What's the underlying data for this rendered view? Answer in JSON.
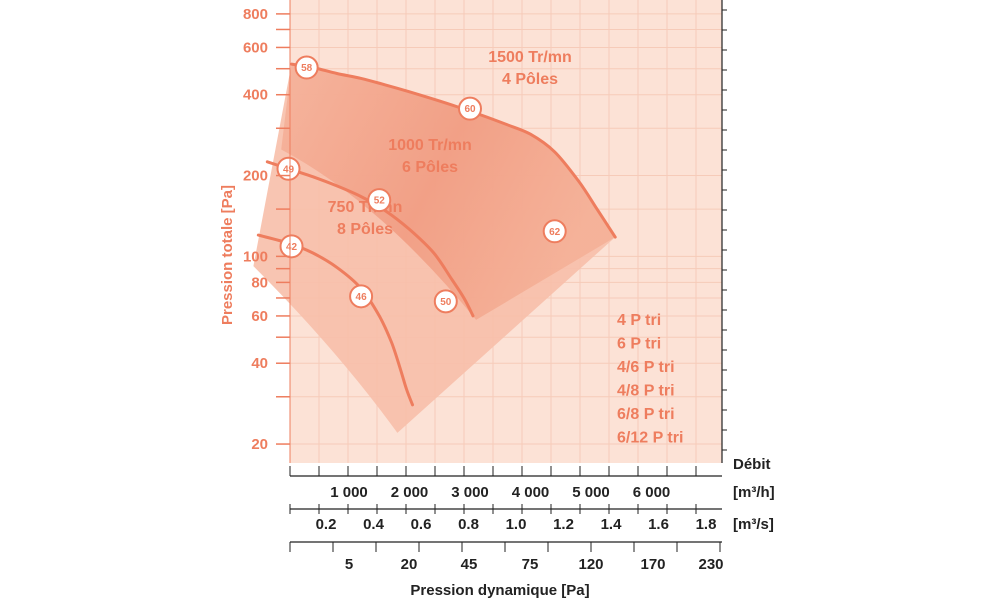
{
  "chart_data": {
    "type": "line",
    "x_axes": [
      {
        "name": "flow_m3h",
        "label": "Débit",
        "unit": "[m³/h]",
        "ticks": [
          "1 000",
          "2 000",
          "3 000",
          "4 000",
          "5 000",
          "6 000"
        ],
        "tick_values": [
          1000,
          2000,
          3000,
          4000,
          5000,
          6000
        ],
        "range": [
          0,
          6500
        ]
      },
      {
        "name": "flow_m3s",
        "unit": "[m³/s]",
        "ticks": [
          "0.2",
          "0.4",
          "0.6",
          "0.8",
          "1.0",
          "1.2",
          "1.4",
          "1.6",
          "1.8"
        ]
      },
      {
        "name": "dynamic_pressure",
        "label": "Pression dynamique [Pa]",
        "ticks": [
          "5",
          "20",
          "45",
          "75",
          "120",
          "170",
          "230"
        ]
      }
    ],
    "y_axis": {
      "label": "Pression totale [Pa]",
      "scale": "log",
      "range": [
        17,
        900
      ],
      "ticks": [
        "20",
        "40",
        "60",
        "80",
        "100",
        "200",
        "400",
        "600",
        "800"
      ],
      "tick_values": [
        20,
        40,
        60,
        80,
        100,
        200,
        400,
        600,
        800
      ]
    },
    "series": [
      {
        "name": "1500 Tr/mn 4 Pôles",
        "label_lines": [
          "1500 Tr/mn",
          "4 Pôles"
        ],
        "curve": [
          [
            50,
            520
          ],
          [
            400,
            505
          ],
          [
            800,
            480
          ],
          [
            1200,
            460
          ],
          [
            1600,
            435
          ],
          [
            2000,
            410
          ],
          [
            2400,
            385
          ],
          [
            2800,
            360
          ],
          [
            3200,
            335
          ],
          [
            3600,
            310
          ],
          [
            4000,
            285
          ],
          [
            4400,
            245
          ],
          [
            4800,
            190
          ],
          [
            5100,
            150
          ],
          [
            5400,
            118
          ]
        ],
        "markers": [
          {
            "x": 300,
            "y": 505,
            "label": "58"
          },
          {
            "x": 3000,
            "y": 355,
            "label": "60"
          },
          {
            "x": 4400,
            "y": 124,
            "label": "62"
          }
        ]
      },
      {
        "name": "1000 Tr/mn 6 Pôles",
        "label_lines": [
          "1000 Tr/mn",
          "6 Pôles"
        ],
        "curve": [
          [
            -350,
            225
          ],
          [
            0,
            212
          ],
          [
            400,
            198
          ],
          [
            800,
            183
          ],
          [
            1200,
            167
          ],
          [
            1600,
            148
          ],
          [
            2000,
            126
          ],
          [
            2400,
            103
          ],
          [
            2700,
            82
          ],
          [
            2900,
            70
          ],
          [
            3050,
            60
          ]
        ],
        "markers": [
          {
            "x": 0,
            "y": 212,
            "label": "49"
          },
          {
            "x": 1500,
            "y": 162,
            "label": "52"
          },
          {
            "x": 2600,
            "y": 68,
            "label": "50"
          }
        ]
      },
      {
        "name": "750 Tr/mn 8 Pôles",
        "label_lines": [
          "750 Tr/mn",
          "8 Pôles"
        ],
        "curve": [
          [
            -500,
            120
          ],
          [
            0,
            112
          ],
          [
            400,
            103
          ],
          [
            800,
            91
          ],
          [
            1200,
            76
          ],
          [
            1500,
            60
          ],
          [
            1700,
            48
          ],
          [
            1850,
            38
          ],
          [
            1950,
            32
          ],
          [
            2050,
            28
          ]
        ],
        "markers": [
          {
            "x": 50,
            "y": 109,
            "label": "42"
          },
          {
            "x": 1200,
            "y": 71,
            "label": "46"
          }
        ]
      }
    ],
    "motor_options": [
      "4 P tri",
      "6 P tri",
      "4/6 P tri",
      "4/8 P tri",
      "6/8 P tri",
      "6/12 P tri"
    ],
    "grid": true,
    "colors": {
      "accent": "#ee7d5e",
      "plot_background": "#fce2d6",
      "region": "#f5a98e",
      "region_dark": "#ee8768",
      "axis": "#222222"
    }
  }
}
